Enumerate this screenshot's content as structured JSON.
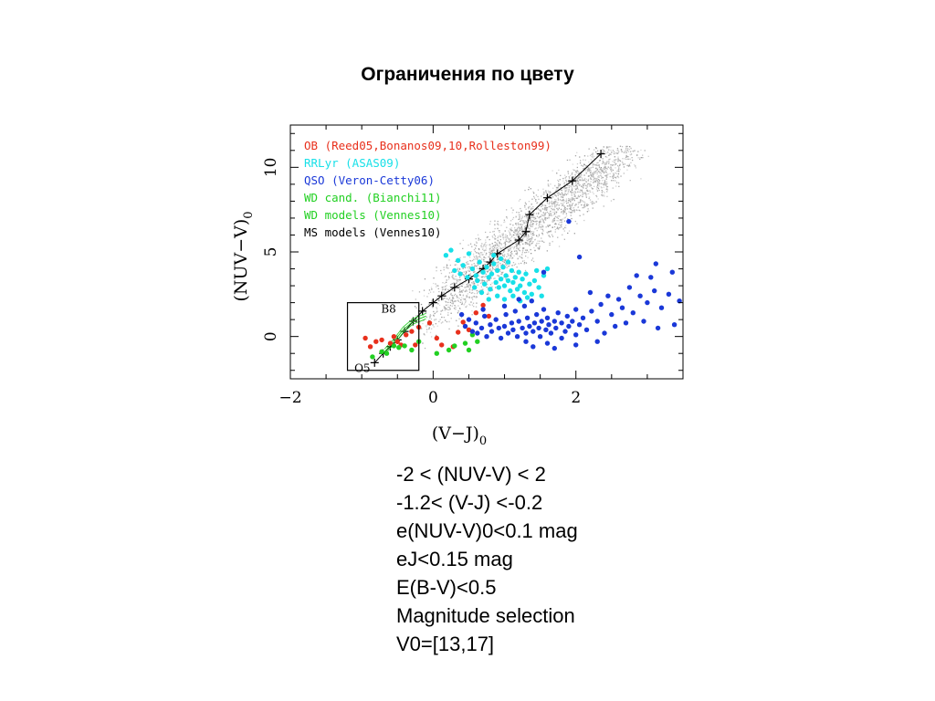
{
  "slide": {
    "title": "Ограничения по цвету",
    "criteria": [
      "-2 < (NUV-V) < 2",
      "-1.2< (V-J) <-0.2",
      "e(NUV-V)0<0.1 mag",
      "eJ<0.15 mag",
      "E(B-V)<0.5",
      "Magnitude selection",
      "V0=[13,17]"
    ]
  },
  "chart_data": {
    "type": "scatter",
    "xlabel": "(V−J)",
    "xlabel_sub": "0",
    "ylabel": "(NUV−V)",
    "ylabel_sub": "0",
    "xlim": [
      -2.0,
      3.5
    ],
    "ylim": [
      -2.5,
      12.5
    ],
    "x_ticks": [
      -2,
      0,
      2
    ],
    "y_ticks": [
      0,
      5,
      10
    ],
    "legend_position": "top-left",
    "legend": [
      {
        "label": "OB (Reed05,Bonanos09,10,Rolleston99)",
        "color": "#e8301c"
      },
      {
        "label": "RRLyr (ASAS09)",
        "color": "#18e0e8"
      },
      {
        "label": "QSO (Veron-Cetty06)",
        "color": "#1a38d8"
      },
      {
        "label": "WD cand. (Bianchi11)",
        "color": "#22d022"
      },
      {
        "label": "WD models (Vennes10)",
        "color": "#22d022"
      },
      {
        "label": "MS models (Vennes10)",
        "color": "#000000"
      }
    ],
    "selection_box": {
      "x": [
        -1.2,
        -0.2
      ],
      "y": [
        -2.0,
        2.0
      ]
    },
    "annotations": [
      {
        "text": "B8",
        "x": -0.55,
        "y": 1.4
      },
      {
        "text": "O5",
        "x": -0.95,
        "y": -1.55
      }
    ],
    "series": [
      {
        "name": "MS models (Vennes10)",
        "style": "line-plus",
        "color": "#000000",
        "points": [
          [
            -0.82,
            -1.55
          ],
          [
            -0.7,
            -1.0
          ],
          [
            -0.6,
            -0.6
          ],
          [
            -0.5,
            -0.2
          ],
          [
            -0.4,
            0.3
          ],
          [
            -0.28,
            0.9
          ],
          [
            -0.15,
            1.5
          ],
          [
            0.0,
            2.0
          ],
          [
            0.12,
            2.4
          ],
          [
            0.3,
            2.9
          ],
          [
            0.5,
            3.4
          ],
          [
            0.7,
            4.0
          ],
          [
            0.8,
            4.4
          ],
          [
            0.9,
            4.9
          ],
          [
            1.2,
            5.7
          ],
          [
            1.3,
            6.2
          ],
          [
            1.35,
            7.2
          ],
          [
            1.6,
            8.2
          ],
          [
            1.95,
            9.2
          ],
          [
            2.35,
            10.8
          ]
        ]
      },
      {
        "name": "WD models (Vennes10)",
        "style": "line",
        "color": "#22d022",
        "points": [
          [
            -0.68,
            -0.9
          ],
          [
            -0.55,
            -0.3
          ],
          [
            -0.42,
            0.4
          ],
          [
            -0.28,
            0.9
          ],
          [
            -0.1,
            1.2
          ]
        ]
      },
      {
        "name": "OB (Reed05,Bonanos09,10,Rolleston99)",
        "color": "#e8301c",
        "points": [
          [
            -0.95,
            -0.1
          ],
          [
            -0.88,
            -0.6
          ],
          [
            -0.8,
            -0.3
          ],
          [
            -0.72,
            -0.2
          ],
          [
            -0.6,
            -0.4
          ],
          [
            -0.55,
            0.0
          ],
          [
            -0.5,
            -0.3
          ],
          [
            -0.45,
            -0.5
          ],
          [
            -0.38,
            0.1
          ],
          [
            -0.3,
            0.3
          ],
          [
            -0.25,
            -0.5
          ],
          [
            -0.2,
            0.55
          ],
          [
            -0.05,
            0.8
          ],
          [
            0.05,
            -0.1
          ],
          [
            0.12,
            -0.5
          ],
          [
            0.28,
            -0.6
          ],
          [
            0.35,
            0.25
          ],
          [
            0.42,
            0.85
          ],
          [
            0.5,
            0.4
          ],
          [
            0.6,
            1.4
          ],
          [
            0.7,
            1.85
          ],
          [
            0.78,
            1.2
          ]
        ]
      },
      {
        "name": "WD cand. (Bianchi11)",
        "color": "#22d022",
        "points": [
          [
            -0.85,
            -1.2
          ],
          [
            -0.72,
            -0.9
          ],
          [
            -0.65,
            -1.0
          ],
          [
            -0.55,
            -0.55
          ],
          [
            -0.48,
            -0.65
          ],
          [
            -0.4,
            -0.55
          ],
          [
            -0.3,
            -0.8
          ],
          [
            -0.2,
            -0.3
          ],
          [
            0.05,
            -1.0
          ],
          [
            0.22,
            -0.8
          ],
          [
            0.3,
            -0.55
          ],
          [
            0.45,
            -0.4
          ],
          [
            0.5,
            -0.8
          ],
          [
            0.55,
            0.1
          ],
          [
            0.62,
            -0.3
          ]
        ]
      },
      {
        "name": "RRLyr (ASAS09)",
        "color": "#18e0e8",
        "points": [
          [
            0.18,
            4.8
          ],
          [
            0.25,
            5.1
          ],
          [
            0.3,
            3.9
          ],
          [
            0.35,
            4.5
          ],
          [
            0.42,
            4.2
          ],
          [
            0.48,
            3.5
          ],
          [
            0.55,
            4.0
          ],
          [
            0.6,
            3.6
          ],
          [
            0.62,
            3.3
          ],
          [
            0.65,
            4.4
          ],
          [
            0.7,
            3.8
          ],
          [
            0.72,
            3.1
          ],
          [
            0.75,
            4.1
          ],
          [
            0.78,
            3.5
          ],
          [
            0.8,
            2.8
          ],
          [
            0.82,
            3.7
          ],
          [
            0.85,
            4.3
          ],
          [
            0.88,
            3.2
          ],
          [
            0.9,
            3.9
          ],
          [
            0.92,
            2.9
          ],
          [
            0.95,
            3.4
          ],
          [
            0.98,
            4.1
          ],
          [
            1.0,
            3.0
          ],
          [
            1.02,
            3.6
          ],
          [
            1.05,
            3.3
          ],
          [
            1.08,
            2.7
          ],
          [
            1.1,
            3.9
          ],
          [
            1.12,
            3.2
          ],
          [
            1.15,
            3.5
          ],
          [
            1.18,
            2.8
          ],
          [
            1.2,
            3.8
          ],
          [
            1.22,
            3.0
          ],
          [
            1.25,
            3.4
          ],
          [
            1.28,
            2.6
          ],
          [
            1.3,
            3.7
          ],
          [
            1.35,
            3.1
          ],
          [
            1.38,
            2.5
          ],
          [
            1.42,
            3.3
          ],
          [
            1.48,
            2.9
          ],
          [
            1.55,
            3.6
          ],
          [
            1.6,
            4.0
          ],
          [
            0.68,
            2.6
          ],
          [
            0.78,
            2.2
          ],
          [
            0.9,
            2.4
          ],
          [
            1.0,
            2.2
          ],
          [
            1.12,
            2.4
          ],
          [
            1.22,
            2.1
          ],
          [
            1.32,
            2.3
          ],
          [
            0.85,
            4.8
          ],
          [
            0.95,
            4.6
          ],
          [
            1.05,
            4.4
          ],
          [
            0.5,
            4.9
          ],
          [
            0.38,
            3.7
          ],
          [
            0.58,
            2.9
          ],
          [
            1.45,
            3.9
          ],
          [
            1.52,
            2.4
          ]
        ]
      },
      {
        "name": "QSO (Veron-Cetty06)",
        "color": "#1a38d8",
        "points": [
          [
            0.45,
            0.6
          ],
          [
            0.5,
            1.0
          ],
          [
            0.55,
            0.3
          ],
          [
            0.6,
            0.8
          ],
          [
            0.62,
            0.2
          ],
          [
            0.68,
            0.5
          ],
          [
            0.72,
            1.2
          ],
          [
            0.75,
            0.0
          ],
          [
            0.8,
            0.7
          ],
          [
            0.82,
            0.3
          ],
          [
            0.88,
            1.0
          ],
          [
            0.92,
            0.5
          ],
          [
            0.95,
            -0.1
          ],
          [
            1.0,
            0.6
          ],
          [
            1.02,
            1.3
          ],
          [
            1.05,
            0.2
          ],
          [
            1.1,
            0.8
          ],
          [
            1.12,
            0.4
          ],
          [
            1.15,
            1.5
          ],
          [
            1.18,
            0.0
          ],
          [
            1.2,
            0.9
          ],
          [
            1.25,
            0.5
          ],
          [
            1.28,
            1.8
          ],
          [
            1.3,
            0.2
          ],
          [
            1.32,
            1.1
          ],
          [
            1.35,
            0.6
          ],
          [
            1.38,
            2.1
          ],
          [
            1.4,
            0.3
          ],
          [
            1.42,
            0.8
          ],
          [
            1.45,
            1.3
          ],
          [
            1.48,
            0.5
          ],
          [
            1.5,
            0.0
          ],
          [
            1.52,
            0.9
          ],
          [
            1.55,
            1.6
          ],
          [
            1.58,
            0.4
          ],
          [
            1.6,
            1.1
          ],
          [
            1.62,
            0.7
          ],
          [
            1.65,
            0.2
          ],
          [
            1.7,
            0.9
          ],
          [
            1.72,
            0.5
          ],
          [
            1.75,
            1.4
          ],
          [
            1.8,
            0.8
          ],
          [
            1.85,
            0.3
          ],
          [
            1.88,
            1.2
          ],
          [
            1.9,
            0.6
          ],
          [
            1.95,
            0.9
          ],
          [
            2.0,
            1.6
          ],
          [
            2.0,
            0.1
          ],
          [
            2.05,
            0.7
          ],
          [
            2.1,
            1.1
          ],
          [
            2.15,
            0.4
          ],
          [
            2.2,
            2.6
          ],
          [
            2.22,
            1.5
          ],
          [
            2.3,
            0.9
          ],
          [
            2.35,
            1.9
          ],
          [
            2.4,
            0.2
          ],
          [
            2.45,
            2.4
          ],
          [
            2.5,
            1.3
          ],
          [
            2.55,
            0.6
          ],
          [
            2.6,
            2.2
          ],
          [
            2.65,
            1.7
          ],
          [
            2.7,
            0.8
          ],
          [
            2.75,
            2.9
          ],
          [
            2.8,
            1.4
          ],
          [
            2.9,
            2.4
          ],
          [
            2.95,
            0.9
          ],
          [
            3.0,
            2.0
          ],
          [
            3.05,
            3.5
          ],
          [
            3.1,
            2.7
          ],
          [
            3.15,
            0.5
          ],
          [
            3.2,
            1.7
          ],
          [
            3.3,
            2.5
          ],
          [
            3.35,
            3.8
          ],
          [
            3.38,
            0.7
          ],
          [
            3.45,
            2.1
          ],
          [
            1.4,
            -0.6
          ],
          [
            1.6,
            -0.4
          ],
          [
            1.8,
            -0.1
          ],
          [
            2.0,
            -0.5
          ],
          [
            1.3,
            -0.3
          ],
          [
            1.7,
            -0.7
          ],
          [
            2.3,
            -0.3
          ],
          [
            1.9,
            6.8
          ],
          [
            2.05,
            4.7
          ],
          [
            1.55,
            3.8
          ],
          [
            0.7,
            1.6
          ],
          [
            0.4,
            1.3
          ],
          [
            1.0,
            1.8
          ],
          [
            1.2,
            2.2
          ],
          [
            2.85,
            3.6
          ],
          [
            3.12,
            4.3
          ]
        ]
      }
    ]
  }
}
